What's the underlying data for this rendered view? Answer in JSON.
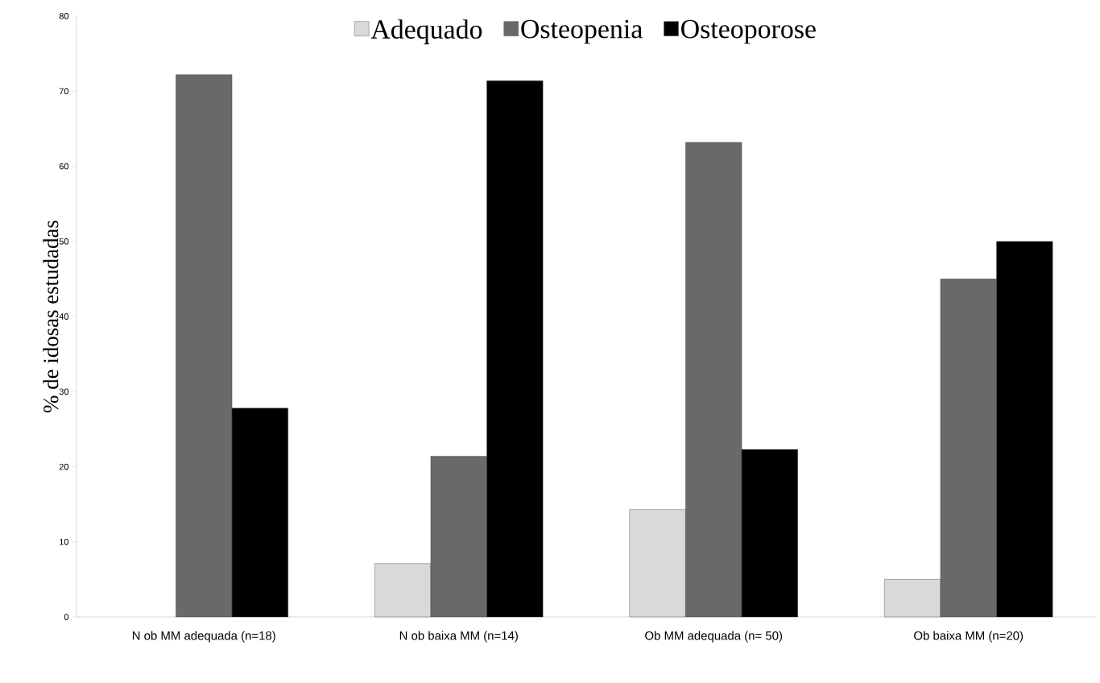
{
  "chart_data": {
    "type": "bar",
    "ylabel": "% de idosas estudadas",
    "categories": [
      "N ob MM adequada (n=18)",
      "N ob baixa MM (n=14)",
      "Ob MM adequada (n= 50)",
      "Ob baixa MM (n=20)"
    ],
    "series": [
      {
        "name": "Adequado",
        "color": "#d9d9d9",
        "values": [
          0,
          7.1,
          14.3,
          5.0
        ]
      },
      {
        "name": "Osteopenia",
        "color": "#696969",
        "values": [
          72.2,
          21.4,
          63.2,
          45.0
        ]
      },
      {
        "name": "Osteoporose",
        "color": "#000000",
        "values": [
          27.8,
          71.4,
          22.3,
          50.0
        ]
      }
    ],
    "ylim": [
      0,
      80
    ],
    "yticks": [
      0,
      10,
      20,
      30,
      40,
      50,
      60,
      70,
      80
    ],
    "legend": "top"
  }
}
